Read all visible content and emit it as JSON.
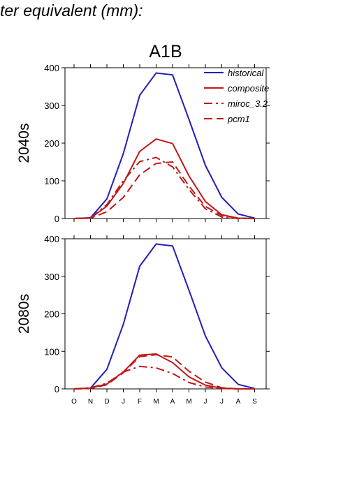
{
  "header": {
    "title": "ter equivalent (mm):"
  },
  "chart_data": {
    "type": "line",
    "title": "A1B",
    "categories": [
      "O",
      "N",
      "D",
      "J",
      "F",
      "M",
      "A",
      "M",
      "J",
      "J",
      "A",
      "S"
    ],
    "ylim": [
      0,
      400
    ],
    "yticks": [
      0,
      100,
      200,
      300,
      400
    ],
    "grid": false,
    "legend_position": "top-right",
    "colors": {
      "historical": "#1f1fbf",
      "future": "#c01818"
    },
    "panels": [
      {
        "label": "2040s",
        "series": [
          {
            "name": "historical",
            "style": "solid",
            "color": "#1f1fbf",
            "values": [
              0,
              2,
              52,
              172,
              327,
              386,
              381,
              263,
              141,
              56,
              12,
              1
            ]
          },
          {
            "name": "composite",
            "style": "solid",
            "color": "#c01818",
            "values": [
              0,
              1,
              33,
              93,
              178,
              211,
              199,
              113,
              45,
              10,
              1,
              0
            ]
          },
          {
            "name": "miroc_3.2",
            "style": "dashdot",
            "color": "#c01818",
            "values": [
              0,
              1,
              37,
              100,
              151,
              162,
              137,
              77,
              26,
              4,
              0,
              0
            ]
          },
          {
            "name": "pcm1",
            "style": "dashed",
            "color": "#c01818",
            "values": [
              0,
              1,
              18,
              56,
              116,
              146,
              150,
              86,
              32,
              8,
              1,
              0
            ]
          }
        ]
      },
      {
        "label": "2080s",
        "series": [
          {
            "name": "historical",
            "style": "solid",
            "color": "#1f1fbf",
            "values": [
              0,
              2,
              52,
              172,
              327,
              386,
              381,
              263,
              141,
              56,
              12,
              1
            ]
          },
          {
            "name": "composite",
            "style": "solid",
            "color": "#c01818",
            "values": [
              0,
              2,
              13,
              45,
              90,
              93,
              70,
              32,
              10,
              2,
              0,
              0
            ]
          },
          {
            "name": "miroc_3.2",
            "style": "dashdot",
            "color": "#c01818",
            "values": [
              0,
              3,
              15,
              45,
              60,
              56,
              41,
              17,
              5,
              1,
              0,
              0
            ]
          },
          {
            "name": "pcm1",
            "style": "dashed",
            "color": "#c01818",
            "values": [
              0,
              1,
              11,
              43,
              86,
              91,
              85,
              47,
              18,
              3,
              0,
              0
            ]
          }
        ]
      }
    ]
  }
}
